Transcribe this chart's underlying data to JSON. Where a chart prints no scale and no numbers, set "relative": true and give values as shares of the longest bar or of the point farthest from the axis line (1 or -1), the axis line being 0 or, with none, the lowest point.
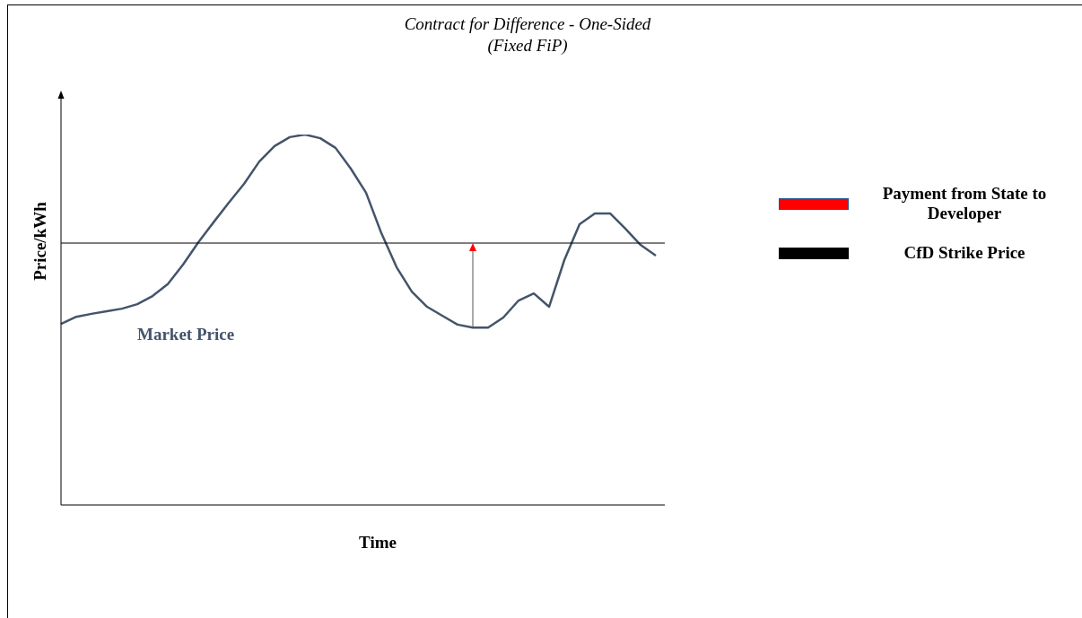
{
  "chart_data": {
    "type": "line",
    "title": "Contract for Difference - One-Sided",
    "subtitle": "(Fixed FiP)",
    "xlabel": "Time",
    "ylabel": "Price/kWh",
    "relative": true,
    "categories": [
      null,
      null,
      null,
      null,
      null,
      null,
      null,
      null,
      null,
      null,
      null,
      null,
      null,
      null,
      null,
      null,
      null,
      null,
      null,
      null,
      null,
      null,
      null,
      null,
      null,
      null,
      null,
      null,
      null,
      null,
      null,
      null,
      null,
      null,
      null,
      null,
      null,
      null,
      null,
      null
    ],
    "series": [
      {
        "name": "Market Price",
        "color": "#44546a",
        "values": [
          0.489,
          0.508,
          0.516,
          0.523,
          0.53,
          0.542,
          0.564,
          0.596,
          0.649,
          0.709,
          0.763,
          0.816,
          0.867,
          0.927,
          0.969,
          0.993,
          1,
          0.99,
          0.964,
          0.908,
          0.843,
          0.734,
          0.642,
          0.576,
          0.535,
          0.511,
          0.487,
          0.479,
          0.479,
          0.506,
          0.552,
          0.571,
          0.535,
          0.661,
          0.758,
          0.787,
          0.787,
          0.746,
          0.702,
          0.673
        ]
      }
    ],
    "ref_lines": [
      {
        "axis": "y",
        "value": 0.707,
        "label": "CfD Strike Price",
        "color": "#000000"
      }
    ],
    "annotations": [
      "Payment from State to Developer"
    ],
    "legend": "right",
    "marker": "none",
    "line_style": "solid"
  }
}
